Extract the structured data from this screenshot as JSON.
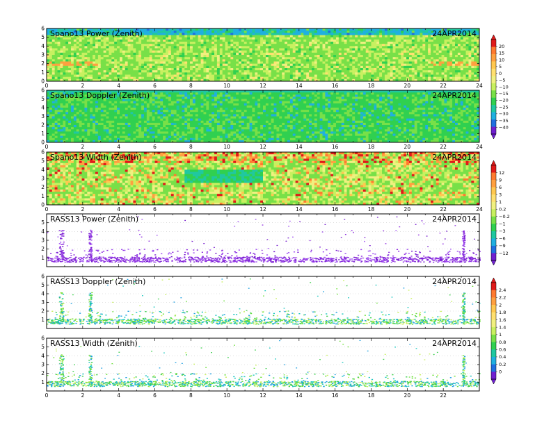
{
  "chart_data": [
    {
      "type": "heatmap",
      "title": "Spano13 Power (Zenith)",
      "date": "24APR2014",
      "xlim": [
        0,
        24
      ],
      "ylim": [
        0,
        6
      ],
      "xticks": [
        "0",
        "2",
        "4",
        "6",
        "8",
        "10",
        "12",
        "14",
        "16",
        "18",
        "20",
        "22",
        "24"
      ],
      "yticks": [
        "0",
        "1",
        "2",
        "3",
        "4",
        "5",
        "6"
      ],
      "colorbar": "A"
    },
    {
      "type": "heatmap",
      "title": "Spano13 Doppler (Zenith)",
      "date": "24APR2014",
      "xlim": [
        0,
        24
      ],
      "ylim": [
        0,
        6
      ],
      "xticks": [
        "0",
        "2",
        "4",
        "6",
        "8",
        "10",
        "12",
        "14",
        "16",
        "18",
        "20",
        "22",
        "24"
      ],
      "yticks": [
        "0",
        "1",
        "2",
        "3",
        "4",
        "5",
        "6"
      ],
      "colorbar": "A"
    },
    {
      "type": "heatmap",
      "title": "Spano13 Width (Zenith)",
      "date": "24APR2014",
      "xlim": [
        0,
        24
      ],
      "ylim": [
        0,
        6
      ],
      "xticks": [
        "0",
        "2",
        "4",
        "6",
        "8",
        "10",
        "12",
        "14",
        "16",
        "18",
        "20",
        "22",
        "24"
      ],
      "yticks": [
        "0",
        "1",
        "2",
        "3",
        "4",
        "5",
        "6"
      ],
      "colorbar": "B"
    },
    {
      "type": "scatter",
      "title": "RASS13 Power (Zenith)",
      "date": "24APR2014",
      "xlim": [
        0,
        24
      ],
      "ylim": [
        0,
        6
      ],
      "xticks": [],
      "yticks": [
        "1",
        "2",
        "3",
        "4",
        "5"
      ],
      "colorbar": "B"
    },
    {
      "type": "scatter",
      "title": "RASS13 Doppler (Zenith)",
      "date": "24APR2014",
      "xlim": [
        0,
        24
      ],
      "ylim": [
        0,
        6
      ],
      "xticks": [],
      "yticks": [
        "1",
        "2",
        "3",
        "4",
        "5",
        "6"
      ],
      "colorbar": "C"
    },
    {
      "type": "scatter",
      "title": "RASS13 Width (Zenith)",
      "date": "24APR2014",
      "xlim": [
        0,
        24
      ],
      "ylim": [
        0,
        6
      ],
      "xticks": [
        "0",
        "2",
        "4",
        "6",
        "8",
        "10",
        "12",
        "14",
        "16",
        "18",
        "20",
        "22"
      ],
      "yticks": [
        "1",
        "2",
        "3",
        "4",
        "5",
        "6"
      ],
      "colorbar": "C"
    }
  ],
  "colorbars": {
    "A": {
      "labels": [
        "20",
        "15",
        "10",
        "5",
        "0",
        "−5",
        "−10",
        "−15",
        "−20",
        "−25",
        "−30",
        "−35",
        "−40"
      ],
      "colors": [
        "#e01a1a",
        "#ff7a30",
        "#ffa040",
        "#ffc850",
        "#ffe070",
        "#f0f080",
        "#c8f060",
        "#78e048",
        "#30d050",
        "#20c8a0",
        "#20b0e0",
        "#2070e0",
        "#7020d0"
      ]
    },
    "B": {
      "labels": [
        "12",
        "9",
        "6",
        "3",
        "1",
        "0.2",
        "−0.2",
        "−1",
        "−3",
        "−6",
        "−9",
        "−12"
      ],
      "colors": [
        "#e01a1a",
        "#ff7a30",
        "#ffa040",
        "#ffc850",
        "#ffe070",
        "#f0f080",
        "#c8f060",
        "#78e048",
        "#30d050",
        "#20c8a0",
        "#20b0e0",
        "#2070e0",
        "#7020d0"
      ]
    },
    "C": {
      "labels": [
        "2.4",
        "2.2",
        "2",
        "1.8",
        "1.6",
        "1.4",
        "1",
        "0.8",
        "0.6",
        "0.4",
        "0.2",
        "0"
      ],
      "colors": [
        "#e01a1a",
        "#ff7a30",
        "#ffa040",
        "#ffc850",
        "#ffe070",
        "#f0f080",
        "#c8f060",
        "#78e048",
        "#30d050",
        "#20c8a0",
        "#20b0e0",
        "#2070e0",
        "#7020d0"
      ]
    }
  }
}
